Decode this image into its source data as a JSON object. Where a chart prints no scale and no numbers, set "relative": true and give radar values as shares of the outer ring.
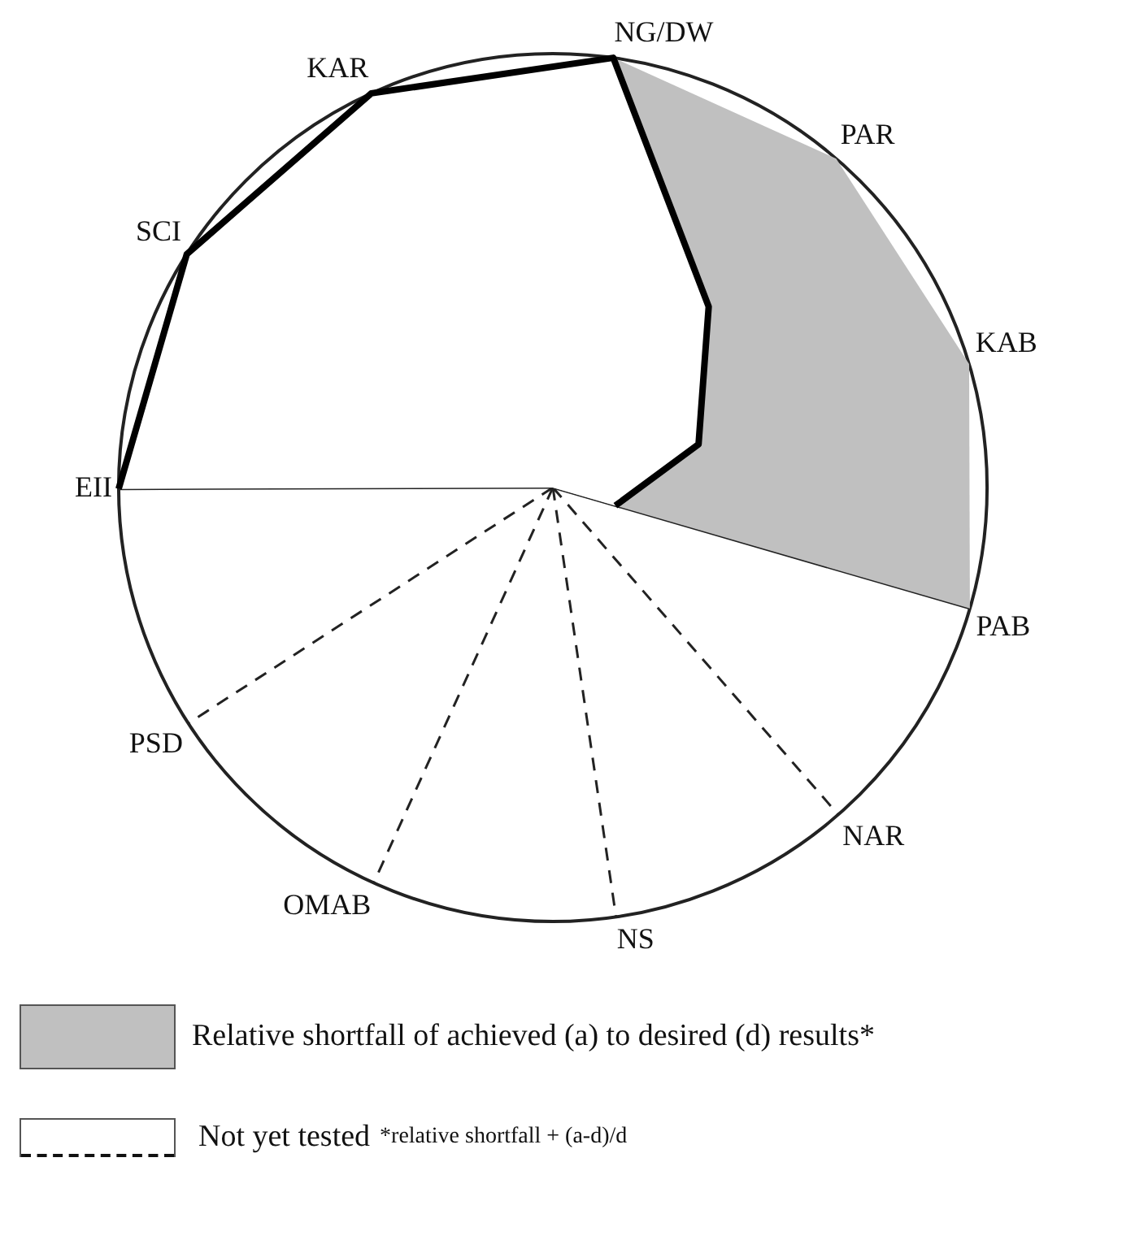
{
  "chart_data": {
    "type": "radar",
    "relative": true,
    "categories": [
      "NG/DW",
      "PAR",
      "KAB",
      "PAB",
      "NAR",
      "NS",
      "OMAB",
      "PSD",
      "EII",
      "SCI",
      "KAR"
    ],
    "series": [
      {
        "name": "Relative shortfall of achieved (a) to desired (d) results*",
        "color": "#c0c0c0",
        "values": [
          1,
          1,
          1,
          1,
          null,
          null,
          null,
          null,
          null,
          null,
          null
        ]
      },
      {
        "color": "#000000",
        "values": [
          1,
          0.55,
          0.35,
          0.15,
          null,
          null,
          null,
          null,
          1,
          1,
          1
        ]
      }
    ],
    "legend": "bottom",
    "marker": "none",
    "annotations": [
      "Not yet tested",
      "*relative shortfall + (a-d)/d"
    ]
  }
}
